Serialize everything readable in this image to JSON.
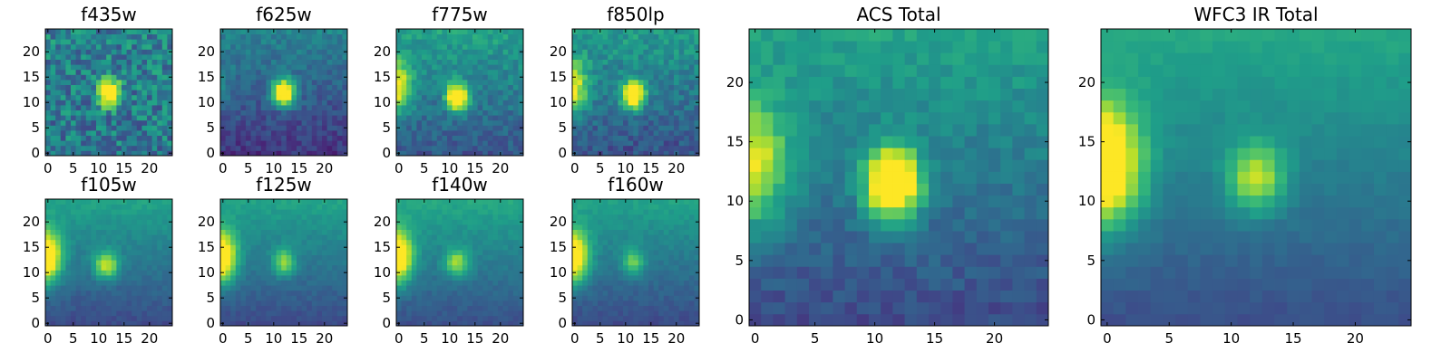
{
  "chart_data": [
    {
      "type": "heatmap",
      "title": "f435w",
      "x_ticks": [
        0,
        5,
        10,
        15,
        20
      ],
      "y_ticks": [
        0,
        5,
        10,
        15,
        20
      ],
      "xlim": [
        0,
        24
      ],
      "ylim": [
        0,
        24
      ],
      "source": {
        "x": 12,
        "y": 12,
        "sx": 1.4,
        "sy": 1.8,
        "amp": 1.0
      },
      "edge": {
        "amp": 0.0
      },
      "background": 0.42,
      "noise": 0.38,
      "gradient": 0.05
    },
    {
      "type": "heatmap",
      "title": "f625w",
      "x_ticks": [
        0,
        5,
        10,
        15,
        20
      ],
      "y_ticks": [
        0,
        5,
        10,
        15,
        20
      ],
      "xlim": [
        0,
        24
      ],
      "ylim": [
        0,
        24
      ],
      "source": {
        "x": 12,
        "y": 12,
        "sx": 1.6,
        "sy": 1.8,
        "amp": 1.0
      },
      "edge": {
        "amp": 0.1
      },
      "background": 0.3,
      "noise": 0.16,
      "gradient": 0.3
    },
    {
      "type": "heatmap",
      "title": "f775w",
      "x_ticks": [
        0,
        5,
        10,
        15,
        20
      ],
      "y_ticks": [
        0,
        5,
        10,
        15,
        20
      ],
      "xlim": [
        0,
        24
      ],
      "ylim": [
        0,
        24
      ],
      "source": {
        "x": 11.5,
        "y": 11,
        "sx": 1.4,
        "sy": 1.8,
        "amp": 1.0
      },
      "edge": {
        "amp": 0.6
      },
      "background": 0.42,
      "noise": 0.18,
      "gradient": 0.3
    },
    {
      "type": "heatmap",
      "title": "f850lp",
      "x_ticks": [
        0,
        5,
        10,
        15,
        20
      ],
      "y_ticks": [
        0,
        5,
        10,
        15,
        20
      ],
      "xlim": [
        0,
        24
      ],
      "ylim": [
        0,
        24
      ],
      "source": {
        "x": 11.5,
        "y": 11.5,
        "sx": 1.5,
        "sy": 1.8,
        "amp": 1.0
      },
      "edge": {
        "amp": 0.6
      },
      "background": 0.4,
      "noise": 0.2,
      "gradient": 0.3
    },
    {
      "type": "heatmap",
      "title": "f105w",
      "x_ticks": [
        0,
        5,
        10,
        15,
        20
      ],
      "y_ticks": [
        0,
        5,
        10,
        15,
        20
      ],
      "xlim": [
        0,
        24
      ],
      "ylim": [
        0,
        24
      ],
      "source": {
        "x": 11.5,
        "y": 11.5,
        "sx": 1.7,
        "sy": 1.8,
        "amp": 0.55
      },
      "edge": {
        "amp": 0.85
      },
      "background": 0.4,
      "noise": 0.07,
      "gradient": 0.35
    },
    {
      "type": "heatmap",
      "title": "f125w",
      "x_ticks": [
        0,
        5,
        10,
        15,
        20
      ],
      "y_ticks": [
        0,
        5,
        10,
        15,
        20
      ],
      "xlim": [
        0,
        24
      ],
      "ylim": [
        0,
        24
      ],
      "source": {
        "x": 12,
        "y": 12,
        "sx": 1.5,
        "sy": 1.8,
        "amp": 0.45
      },
      "edge": {
        "amp": 0.85
      },
      "background": 0.4,
      "noise": 0.07,
      "gradient": 0.35
    },
    {
      "type": "heatmap",
      "title": "f140w",
      "x_ticks": [
        0,
        5,
        10,
        15,
        20
      ],
      "y_ticks": [
        0,
        5,
        10,
        15,
        20
      ],
      "xlim": [
        0,
        24
      ],
      "ylim": [
        0,
        24
      ],
      "source": {
        "x": 11.5,
        "y": 12,
        "sx": 1.7,
        "sy": 1.8,
        "amp": 0.45
      },
      "edge": {
        "amp": 0.85
      },
      "background": 0.42,
      "noise": 0.07,
      "gradient": 0.35
    },
    {
      "type": "heatmap",
      "title": "f160w",
      "x_ticks": [
        0,
        5,
        10,
        15,
        20
      ],
      "y_ticks": [
        0,
        5,
        10,
        15,
        20
      ],
      "xlim": [
        0,
        24
      ],
      "ylim": [
        0,
        24
      ],
      "source": {
        "x": 11.5,
        "y": 12,
        "sx": 1.5,
        "sy": 1.8,
        "amp": 0.4
      },
      "edge": {
        "amp": 0.85
      },
      "background": 0.4,
      "noise": 0.07,
      "gradient": 0.35
    },
    {
      "type": "heatmap",
      "title": "ACS Total",
      "x_ticks": [
        0,
        5,
        10,
        15,
        20
      ],
      "y_ticks": [
        0,
        5,
        10,
        15,
        20
      ],
      "xlim": [
        0,
        24
      ],
      "ylim": [
        0,
        24
      ],
      "source": {
        "x": 11.5,
        "y": 11.5,
        "sx": 1.6,
        "sy": 2.0,
        "amp": 1.0
      },
      "edge": {
        "amp": 0.6
      },
      "background": 0.4,
      "noise": 0.12,
      "gradient": 0.35
    },
    {
      "type": "heatmap",
      "title": "WFC3 IR Total",
      "x_ticks": [
        0,
        5,
        10,
        15,
        20
      ],
      "y_ticks": [
        0,
        5,
        10,
        15,
        20
      ],
      "xlim": [
        0,
        24
      ],
      "ylim": [
        0,
        24
      ],
      "source": {
        "x": 12,
        "y": 12,
        "sx": 1.6,
        "sy": 2.0,
        "amp": 0.5
      },
      "edge": {
        "amp": 0.9
      },
      "background": 0.42,
      "noise": 0.05,
      "gradient": 0.35
    }
  ]
}
